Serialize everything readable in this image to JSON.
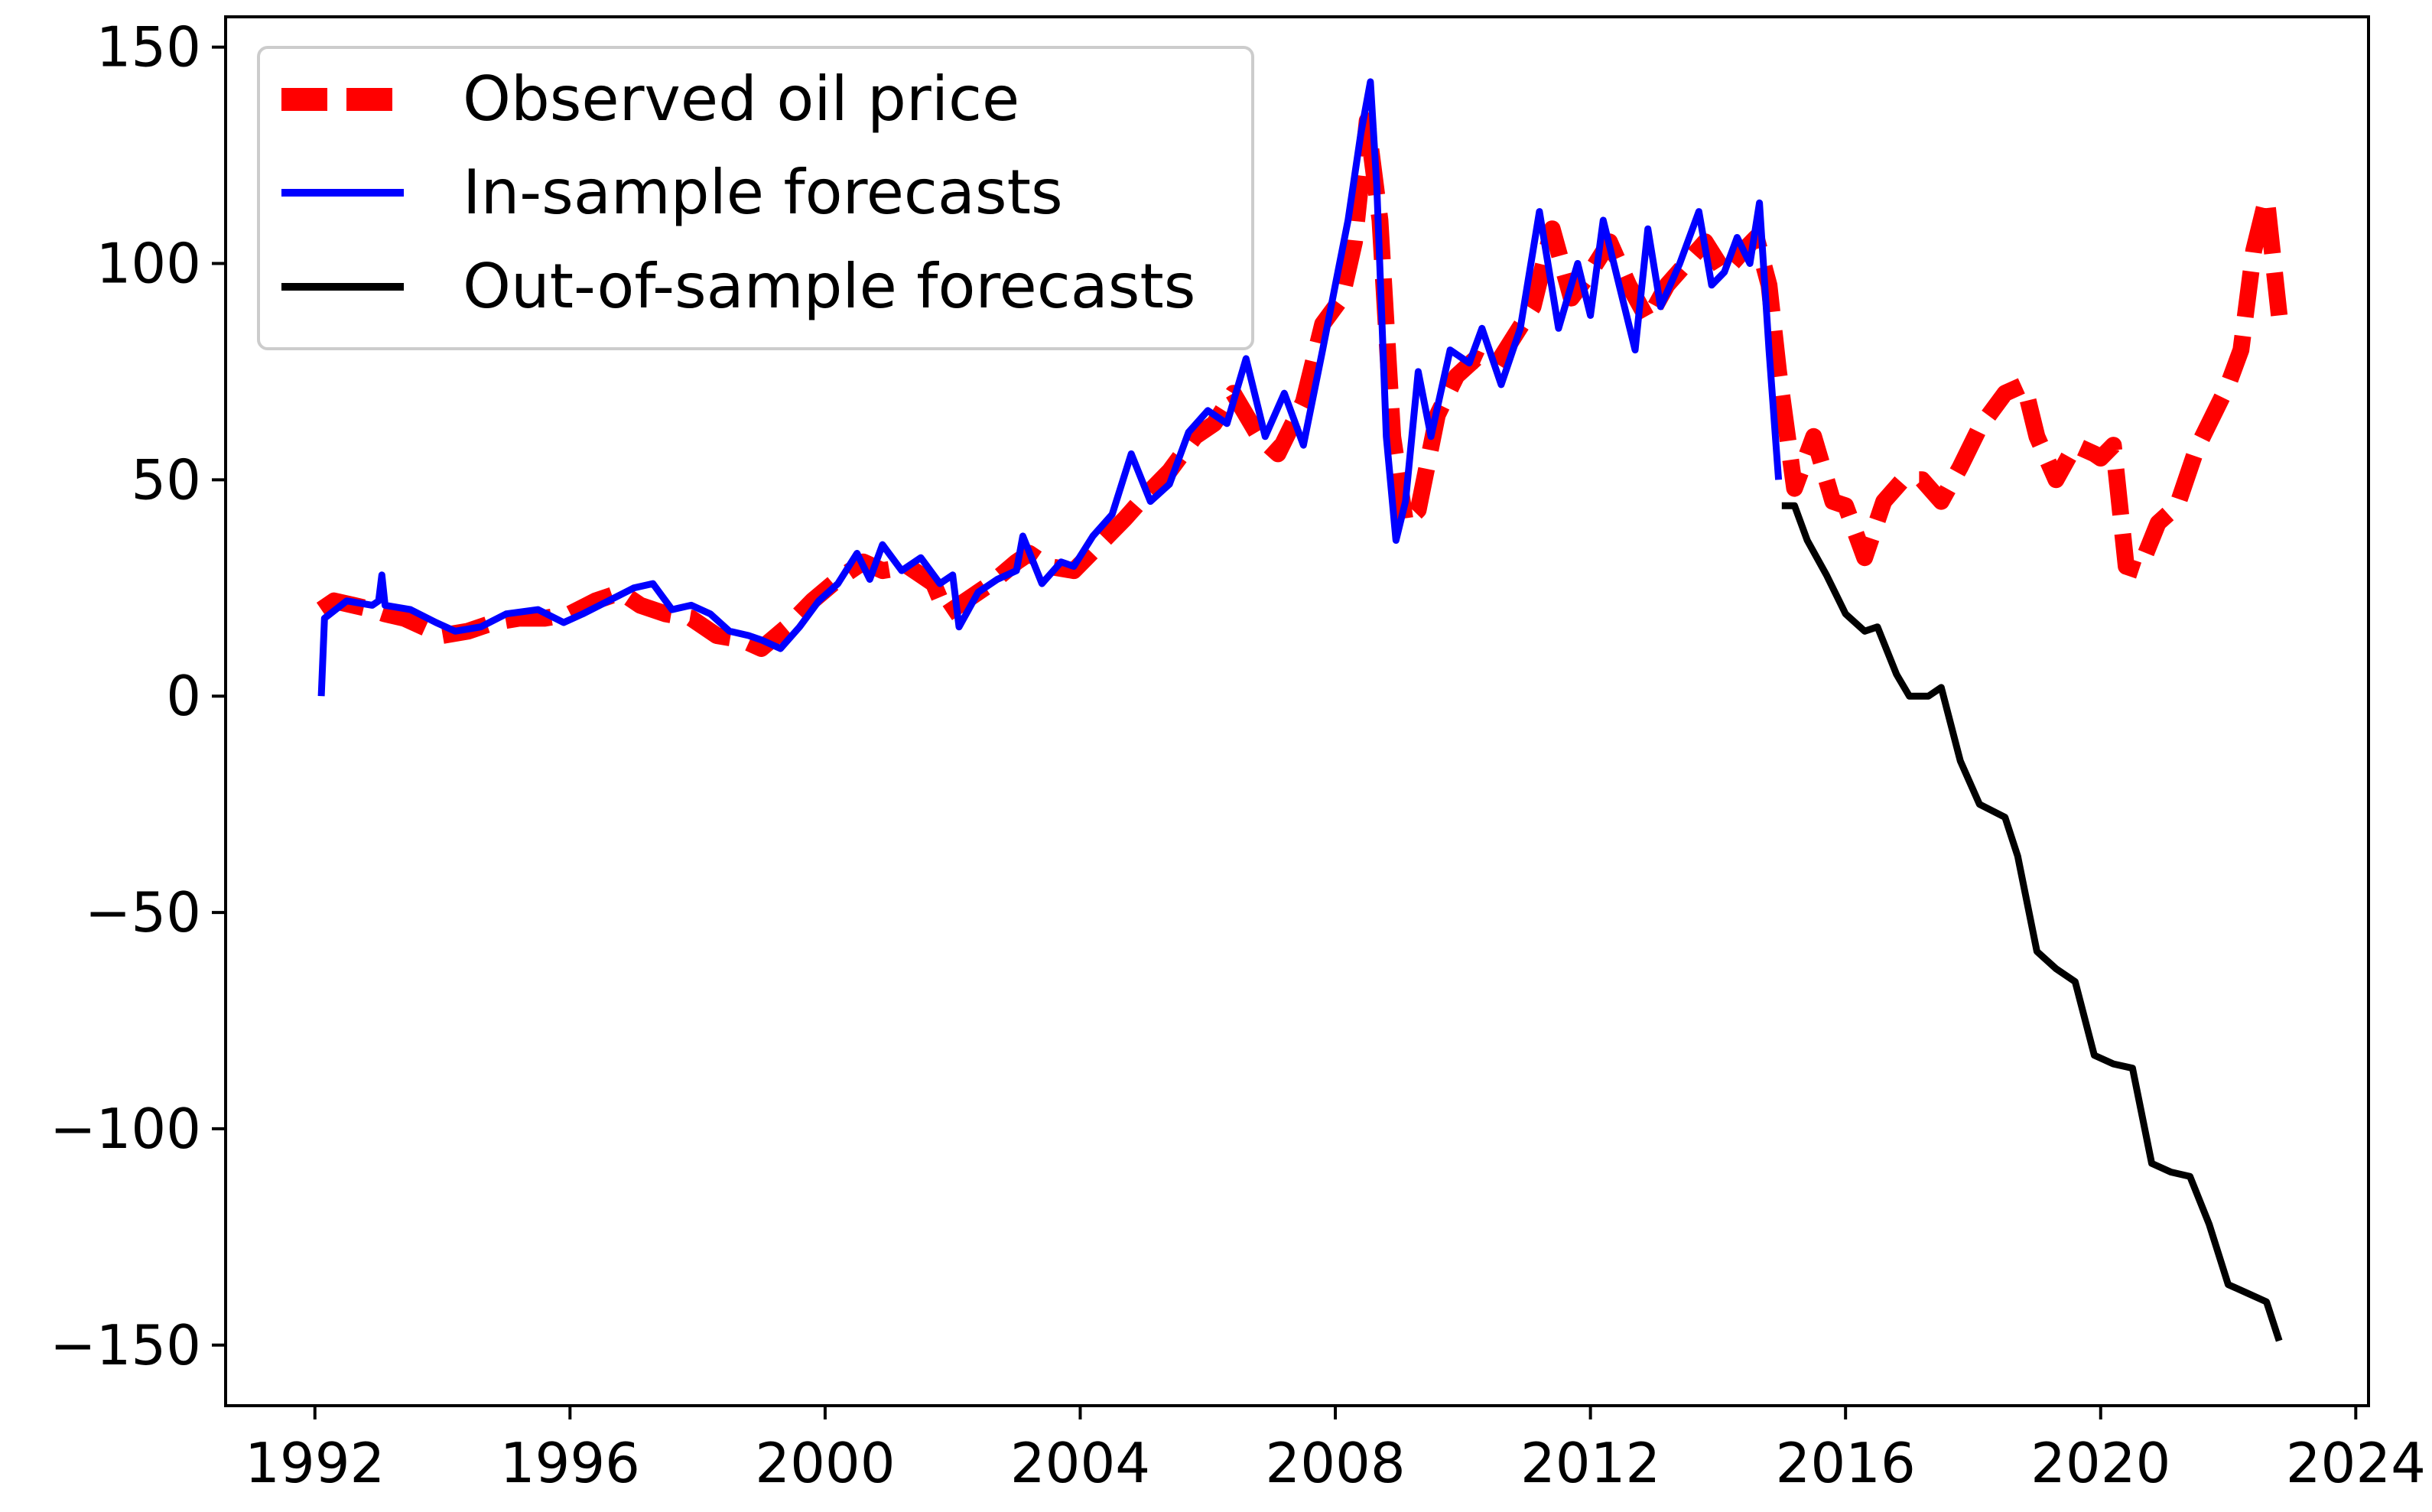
{
  "chart_data": {
    "type": "line",
    "title": "",
    "xlabel": "",
    "ylabel": "",
    "xlim": [
      1990.6,
      2024.2
    ],
    "ylim": [
      -164,
      157
    ],
    "xticks": [
      1992,
      1996,
      2000,
      2004,
      2008,
      2012,
      2016,
      2020,
      2024
    ],
    "yticks": [
      150,
      100,
      50,
      0,
      -50,
      -100,
      -150
    ],
    "xtick_labels": [
      "1992",
      "1996",
      "2000",
      "2004",
      "2008",
      "2012",
      "2016",
      "2020",
      "2024"
    ],
    "ytick_labels": [
      "150",
      "100",
      "50",
      "0",
      "−50",
      "−100",
      "−150"
    ],
    "legend_position": "top-left",
    "series": [
      {
        "name": "Observed oil price",
        "color": "#ff0000",
        "style": "dashed",
        "x": [
          1992.1,
          1992.3,
          1992.6,
          1992.9,
          1993.1,
          1993.4,
          1993.7,
          1994.0,
          1994.4,
          1994.8,
          1995.2,
          1995.6,
          1996.0,
          1996.4,
          1996.8,
          1997.1,
          1997.5,
          1997.9,
          1998.3,
          1998.7,
          1999.0,
          1999.4,
          1999.8,
          2000.2,
          2000.6,
          2000.9,
          2001.3,
          2001.7,
          2001.9,
          2002.2,
          2002.6,
          2003.0,
          2003.2,
          2003.5,
          2003.9,
          2004.3,
          2004.7,
          2005.0,
          2005.4,
          2005.8,
          2006.1,
          2006.4,
          2006.8,
          2007.1,
          2007.5,
          2007.8,
          2008.1,
          2008.3,
          2008.5,
          2008.7,
          2008.9,
          2009.1,
          2009.3,
          2009.6,
          2009.9,
          2010.2,
          2010.5,
          2010.8,
          2011.1,
          2011.4,
          2011.7,
          2012.0,
          2012.3,
          2012.6,
          2012.9,
          2013.2,
          2013.5,
          2013.8,
          2014.1,
          2014.4,
          2014.6,
          2014.8,
          2014.95,
          2015.2,
          2015.5,
          2015.8,
          2016.0,
          2016.3,
          2016.6,
          2016.9,
          2017.2,
          2017.5,
          2017.8,
          2018.1,
          2018.5,
          2018.8,
          2019.0,
          2019.3,
          2019.6,
          2019.9,
          2020.0,
          2020.2,
          2020.4,
          2020.6,
          2020.9,
          2021.2,
          2021.5,
          2021.8,
          2022.0,
          2022.2,
          2022.4,
          2022.6,
          2022.8
        ],
        "y": [
          20,
          22,
          21,
          20,
          19,
          18,
          16,
          14,
          15,
          17,
          18,
          18,
          19,
          22,
          24,
          21,
          19,
          18,
          14,
          13,
          11,
          16,
          22,
          27,
          31,
          29,
          30,
          26,
          19,
          22,
          26,
          31,
          33,
          30,
          29,
          35,
          41,
          46,
          52,
          60,
          63,
          70,
          60,
          56,
          68,
          86,
          92,
          105,
          133,
          110,
          60,
          40,
          43,
          65,
          74,
          78,
          76,
          83,
          90,
          108,
          92,
          98,
          105,
          95,
          87,
          95,
          100,
          105,
          98,
          103,
          106,
          95,
          75,
          48,
          60,
          45,
          44,
          32,
          45,
          50,
          50,
          45,
          53,
          62,
          70,
          72,
          60,
          50,
          58,
          56,
          55,
          58,
          30,
          29,
          40,
          44,
          57,
          66,
          72,
          80,
          103,
          115,
          88
        ]
      },
      {
        "name": "In-sample forecasts",
        "color": "#0000ff",
        "style": "solid",
        "x": [
          1992.1,
          1992.15,
          1992.5,
          1992.9,
          1993.0,
          1993.05,
          1993.1,
          1993.5,
          1993.9,
          1994.2,
          1994.6,
          1995.0,
          1995.5,
          1995.9,
          1996.2,
          1996.6,
          1997.0,
          1997.3,
          1997.6,
          1997.9,
          1998.2,
          1998.5,
          1998.8,
          1999.0,
          1999.3,
          1999.6,
          1999.9,
          2000.2,
          2000.5,
          2000.7,
          2000.9,
          2001.2,
          2001.5,
          2001.8,
          2002.0,
          2002.1,
          2002.4,
          2002.7,
          2003.0,
          2003.1,
          2003.4,
          2003.7,
          2003.9,
          2004.2,
          2004.5,
          2004.8,
          2005.1,
          2005.4,
          2005.7,
          2006.0,
          2006.3,
          2006.6,
          2006.9,
          2007.2,
          2007.5,
          2007.8,
          2008.0,
          2008.2,
          2008.4,
          2008.55,
          2008.65,
          2008.8,
          2008.95,
          2009.1,
          2009.3,
          2009.5,
          2009.8,
          2010.1,
          2010.3,
          2010.6,
          2010.9,
          2011.2,
          2011.5,
          2011.8,
          2012.0,
          2012.2,
          2012.5,
          2012.7,
          2012.9,
          2013.1,
          2013.4,
          2013.7,
          2013.9,
          2014.1,
          2014.3,
          2014.5,
          2014.65,
          2014.8,
          2014.95
        ],
        "y": [
          0,
          18,
          22,
          21,
          22,
          28,
          21,
          20,
          17,
          15,
          16,
          19,
          20,
          17,
          19,
          22,
          25,
          26,
          20,
          21,
          19,
          15,
          14,
          13,
          11,
          16,
          22,
          26,
          33,
          27,
          35,
          29,
          32,
          26,
          28,
          16,
          24,
          27,
          29,
          37,
          26,
          31,
          30,
          37,
          42,
          56,
          45,
          49,
          61,
          66,
          63,
          78,
          60,
          70,
          58,
          80,
          95,
          110,
          130,
          142,
          118,
          60,
          36,
          45,
          75,
          60,
          80,
          77,
          85,
          72,
          85,
          112,
          85,
          100,
          88,
          110,
          92,
          80,
          108,
          90,
          100,
          112,
          95,
          98,
          106,
          100,
          114,
          80,
          50
        ],
        "draw_until": 2014.95
      },
      {
        "name": "Out-of-sample forecasts",
        "color": "#000000",
        "style": "solid",
        "x": [
          2015.0,
          2015.2,
          2015.4,
          2015.7,
          2016.0,
          2016.3,
          2016.5,
          2016.8,
          2017.0,
          2017.3,
          2017.5,
          2017.8,
          2018.1,
          2018.5,
          2018.7,
          2019.0,
          2019.3,
          2019.6,
          2019.9,
          2020.2,
          2020.5,
          2020.8,
          2021.1,
          2021.4,
          2021.7,
          2022.0,
          2022.3,
          2022.6,
          2022.8
        ],
        "y": [
          44,
          44,
          36,
          28,
          19,
          15,
          16,
          5,
          0,
          0,
          2,
          -15,
          -25,
          -28,
          -37,
          -59,
          -63,
          -66,
          -83,
          -85,
          -86,
          -108,
          -110,
          -111,
          -122,
          -136,
          -138,
          -140,
          -149
        ]
      }
    ]
  }
}
